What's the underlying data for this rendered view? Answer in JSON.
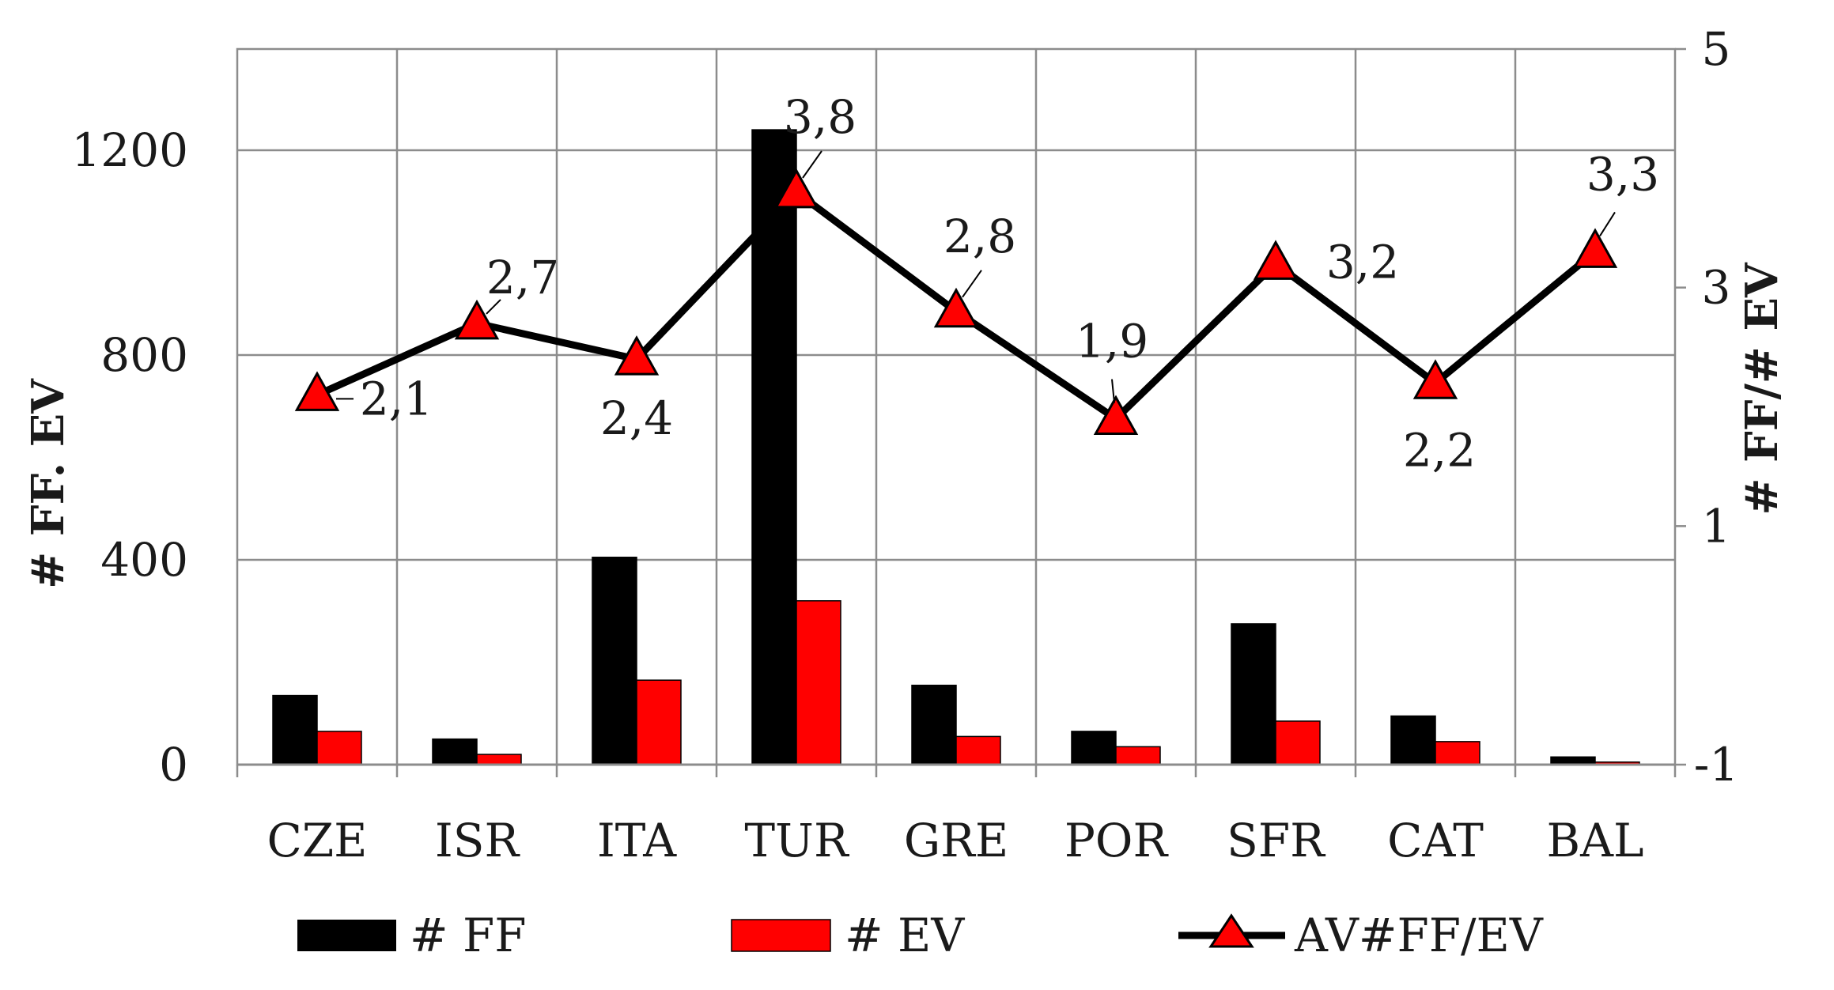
{
  "chart_data": {
    "type": "bar",
    "categories": [
      "CZE",
      "ISR",
      "ITA",
      "TUR",
      "GRE",
      "POR",
      "SFR",
      "CAT",
      "BAL"
    ],
    "series": [
      {
        "name": "# FF",
        "type": "bar",
        "axis": "left",
        "color": "#000000",
        "values": [
          135,
          50,
          405,
          1240,
          155,
          65,
          275,
          95,
          15
        ]
      },
      {
        "name": "# EV",
        "type": "bar",
        "axis": "left",
        "color": "#ff0000",
        "values": [
          65,
          20,
          165,
          320,
          55,
          35,
          85,
          45,
          5
        ]
      },
      {
        "name": "AV#FF/EV",
        "type": "line",
        "axis": "right",
        "color": "#000000",
        "marker": "triangle",
        "marker_color": "#ff0000",
        "values": [
          2.1,
          2.7,
          2.4,
          3.8,
          2.8,
          1.9,
          3.2,
          2.2,
          3.3
        ],
        "value_labels": [
          "2,1",
          "2,7",
          "2,4",
          "3,8",
          "2,8",
          "1,9",
          "3,2",
          "2,2",
          "3,3"
        ]
      }
    ],
    "ylabel": "# FF. EV",
    "y2label": "# FF/# EV",
    "ylim": [
      0,
      1200
    ],
    "y2lim": [
      -1,
      5
    ],
    "yticks": [
      0,
      400,
      800,
      1200
    ],
    "y2ticks": [
      -1,
      1,
      3,
      5
    ],
    "grid": true,
    "legend_position": "bottom"
  }
}
